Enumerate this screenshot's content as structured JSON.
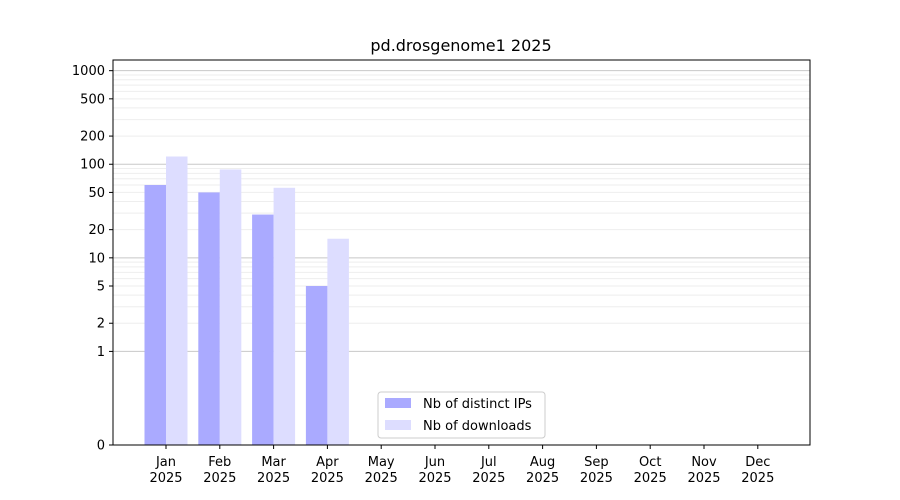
{
  "chart_data": {
    "type": "bar",
    "title": "pd.drosgenome1 2025",
    "xlabel": "",
    "ylabel": "",
    "y_scale": "symlog",
    "ylim": [
      0,
      1300
    ],
    "y_ticks": [
      0,
      1,
      2,
      5,
      10,
      20,
      50,
      100,
      200,
      500,
      1000
    ],
    "y_tick_labels": [
      "0",
      "1",
      "2",
      "5",
      "10",
      "20",
      "50",
      "100",
      "200",
      "500",
      "1000"
    ],
    "grid": true,
    "legend_position": "lower-center",
    "categories": [
      {
        "month": "Jan",
        "year": "2025"
      },
      {
        "month": "Feb",
        "year": "2025"
      },
      {
        "month": "Mar",
        "year": "2025"
      },
      {
        "month": "Apr",
        "year": "2025"
      },
      {
        "month": "May",
        "year": "2025"
      },
      {
        "month": "Jun",
        "year": "2025"
      },
      {
        "month": "Jul",
        "year": "2025"
      },
      {
        "month": "Aug",
        "year": "2025"
      },
      {
        "month": "Sep",
        "year": "2025"
      },
      {
        "month": "Oct",
        "year": "2025"
      },
      {
        "month": "Nov",
        "year": "2025"
      },
      {
        "month": "Dec",
        "year": "2025"
      }
    ],
    "series": [
      {
        "name": "Nb of distinct IPs",
        "color": "#aaaaff",
        "values": [
          60,
          50,
          29,
          5,
          0,
          0,
          0,
          0,
          0,
          0,
          0,
          0
        ]
      },
      {
        "name": "Nb of downloads",
        "color": "#ddddff",
        "values": [
          121,
          88,
          56,
          16,
          0,
          0,
          0,
          0,
          0,
          0,
          0,
          0
        ]
      }
    ]
  }
}
